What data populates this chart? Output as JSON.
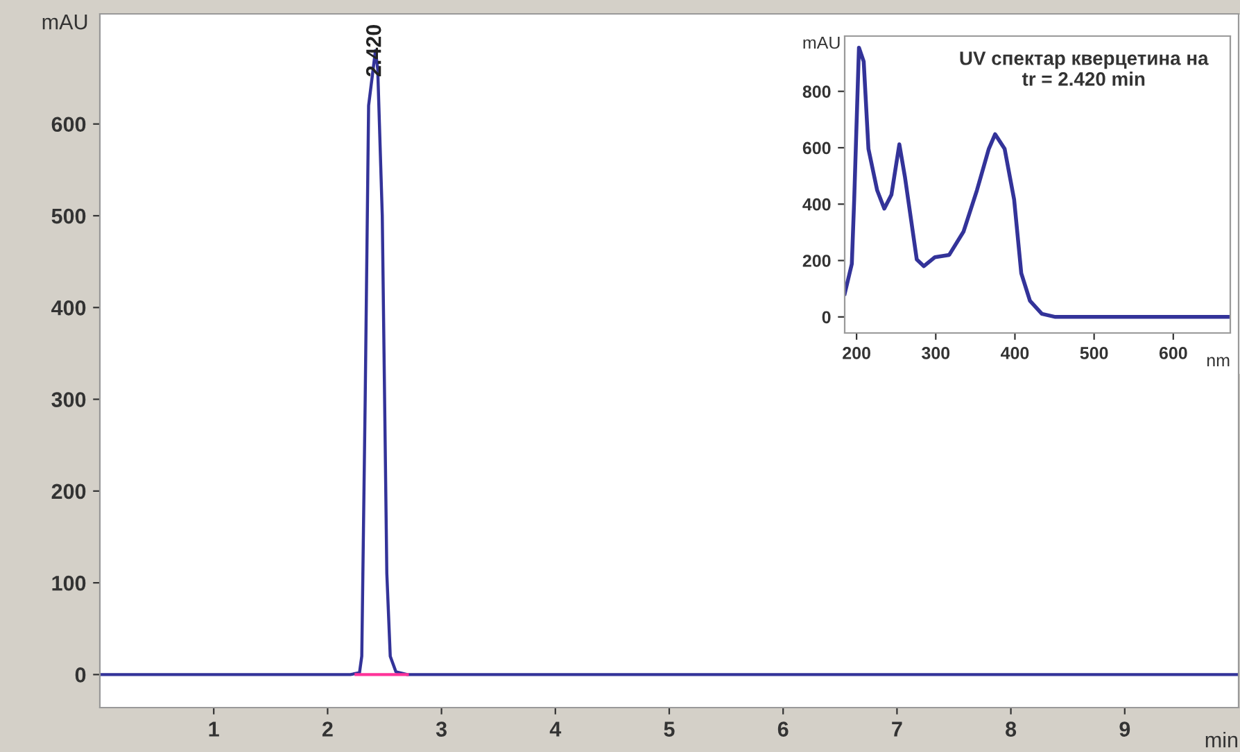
{
  "chart_data": [
    {
      "type": "line",
      "xlabel": "min",
      "ylabel": "mAU",
      "xlim": [
        0,
        10
      ],
      "ylim": [
        -36,
        720
      ],
      "xticks": [
        1,
        2,
        3,
        4,
        5,
        6,
        7,
        8,
        9
      ],
      "yticks": [
        0,
        100,
        200,
        300,
        400,
        500,
        600
      ],
      "grid": false,
      "legend": false,
      "marker": "none",
      "line_style": "solid",
      "annotations": [
        {
          "text": "2.420",
          "x": 2.42,
          "y": 680
        }
      ],
      "series": [
        {
          "color": "#333399",
          "x": [
            0,
            2.2,
            2.28,
            2.3,
            2.33,
            2.36,
            2.4,
            2.42,
            2.44,
            2.48,
            2.52,
            2.55,
            2.6,
            2.7,
            10
          ],
          "values": [
            0,
            0,
            2,
            20,
            300,
            620,
            660,
            680,
            660,
            500,
            110,
            20,
            3,
            0,
            0
          ]
        },
        {
          "color": "#ff3399",
          "x": [
            2.25,
            2.7
          ],
          "values": [
            0,
            0
          ]
        }
      ]
    },
    {
      "type": "line",
      "title": "UV спектар кверцетина на\ntr = 2.420 min",
      "xlabel": "nm",
      "ylabel": "mAU",
      "xlim": [
        185,
        672
      ],
      "ylim": [
        -57,
        996
      ],
      "xticks": [
        200,
        300,
        400,
        500,
        600
      ],
      "yticks": [
        0,
        200,
        400,
        600,
        800
      ],
      "grid": false,
      "legend": false,
      "marker": "none",
      "line_style": "solid",
      "series": [
        {
          "color": "#333399",
          "x": [
            185,
            194,
            197,
            203,
            209,
            215,
            226,
            235,
            244,
            254,
            261,
            276,
            285,
            299,
            317,
            335,
            352,
            367,
            375,
            387,
            399,
            408,
            419,
            434,
            451,
            671
          ],
          "values": [
            82,
            188,
            416,
            955,
            906,
            596,
            449,
            384,
            433,
            612,
            498,
            204,
            180,
            212,
            220,
            302,
            449,
            596,
            648,
            596,
            416,
            155,
            57,
            11,
            0,
            0
          ]
        }
      ]
    }
  ]
}
